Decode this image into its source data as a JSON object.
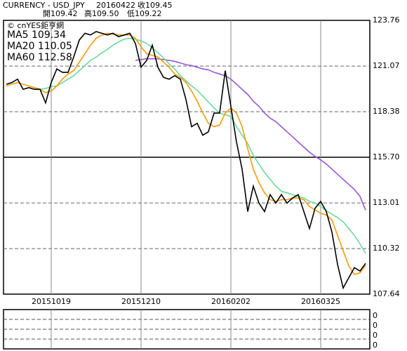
{
  "header": {
    "symbol": "CURRENCY - USD_JPY",
    "date": "20160422",
    "close": "收109.45",
    "open": "開109.42",
    "high": "高109.50",
    "low": "低109.22"
  },
  "chart_data": {
    "type": "line",
    "source": "© cnYES鉅亨網",
    "categories": [
      null,
      null,
      null,
      null,
      null,
      null,
      null,
      null,
      "20151019",
      null,
      null,
      null,
      null,
      null,
      null,
      null,
      null,
      null,
      null,
      null,
      null,
      null,
      null,
      null,
      "20151210",
      null,
      null,
      null,
      null,
      null,
      null,
      null,
      null,
      null,
      null,
      null,
      null,
      null,
      null,
      null,
      "20160202",
      null,
      null,
      null,
      null,
      null,
      null,
      null,
      null,
      null,
      null,
      null,
      null,
      null,
      null,
      null,
      "20160325",
      null,
      null,
      null,
      null,
      null,
      null,
      null,
      null
    ],
    "series": [
      {
        "color": "#000000",
        "values": [
          120.0,
          120.1,
          120.3,
          119.7,
          119.8,
          119.7,
          119.7,
          118.9,
          120.1,
          120.9,
          120.7,
          120.7,
          121.6,
          122.6,
          123.0,
          122.9,
          123.1,
          123.0,
          122.9,
          123.0,
          122.8,
          122.9,
          123.0,
          122.4,
          121.0,
          121.4,
          122.3,
          121.0,
          120.4,
          120.3,
          120.5,
          120.3,
          119.1,
          117.5,
          117.7,
          117.0,
          117.2,
          118.3,
          118.3,
          120.8,
          118.7,
          116.6,
          115.0,
          112.5,
          114.0,
          113.0,
          112.5,
          113.5,
          113.0,
          113.5,
          113.0,
          113.3,
          113.5,
          112.5,
          111.5,
          112.7,
          113.1,
          112.5,
          111.3,
          109.4,
          108.0,
          108.6,
          109.2,
          109.0,
          109.45
        ]
      },
      {
        "name": "MA5 109.34",
        "color": "#ff9900",
        "values": [
          119.9,
          120.0,
          120.1,
          120.0,
          119.9,
          119.8,
          119.7,
          119.5,
          119.6,
          119.9,
          120.3,
          120.6,
          120.8,
          121.3,
          121.8,
          122.3,
          122.7,
          122.9,
          123.0,
          122.95,
          122.9,
          122.9,
          122.9,
          122.7,
          122.2,
          121.8,
          121.7,
          121.6,
          121.3,
          121.0,
          120.6,
          120.4,
          120.1,
          119.6,
          119.0,
          118.3,
          117.7,
          117.5,
          117.6,
          118.3,
          118.6,
          118.3,
          117.5,
          116.2,
          115.0,
          114.2,
          113.6,
          113.2,
          113.1,
          113.2,
          113.2,
          113.3,
          113.3,
          113.2,
          112.8,
          112.6,
          112.4,
          112.3,
          112.0,
          111.1,
          110.2,
          109.3,
          108.8,
          108.9,
          109.34
        ]
      },
      {
        "name": "MA20 110.05",
        "color": "#66dd99",
        "values": [
          null,
          null,
          null,
          null,
          null,
          null,
          119.7,
          119.75,
          119.85,
          119.9,
          120.1,
          120.3,
          120.5,
          120.8,
          121.1,
          121.4,
          121.6,
          121.85,
          122.05,
          122.3,
          122.5,
          122.65,
          122.7,
          122.65,
          122.55,
          122.4,
          122.15,
          121.85,
          121.55,
          121.2,
          120.9,
          120.5,
          120.2,
          119.9,
          119.65,
          119.3,
          118.95,
          118.6,
          118.3,
          118.2,
          118.1,
          117.5,
          117.0,
          116.5,
          115.8,
          115.3,
          114.8,
          114.4,
          114.0,
          113.7,
          113.6,
          113.5,
          113.4,
          113.3,
          113.1,
          113.0,
          112.8,
          112.55,
          112.35,
          112.15,
          111.9,
          111.5,
          111.1,
          110.6,
          110.05
        ]
      },
      {
        "name": "MA60 112.58",
        "color": "#9955dd",
        "values": [
          null,
          null,
          null,
          null,
          null,
          null,
          null,
          null,
          null,
          null,
          null,
          null,
          null,
          null,
          null,
          null,
          null,
          null,
          null,
          null,
          null,
          null,
          null,
          121.4,
          121.45,
          121.5,
          121.5,
          121.5,
          121.45,
          121.4,
          121.35,
          121.25,
          121.15,
          121.1,
          121.0,
          120.9,
          120.85,
          120.7,
          120.6,
          120.5,
          120.3,
          120.0,
          119.7,
          119.4,
          119.0,
          118.7,
          118.3,
          118.0,
          117.8,
          117.5,
          117.2,
          116.9,
          116.6,
          116.3,
          116.0,
          115.75,
          115.55,
          115.3,
          115.0,
          114.7,
          114.4,
          114.1,
          113.8,
          113.4,
          112.58
        ]
      }
    ],
    "ylim": [
      107.64,
      123.76
    ],
    "yticks": [
      123.76,
      121.07,
      118.38,
      {
        "value": 115.7,
        "label": "115.70"
      },
      113.01,
      110.32,
      107.64
    ],
    "grid": true
  },
  "sub_panel": {
    "labels": [
      "0",
      "0",
      "0",
      "0"
    ]
  }
}
